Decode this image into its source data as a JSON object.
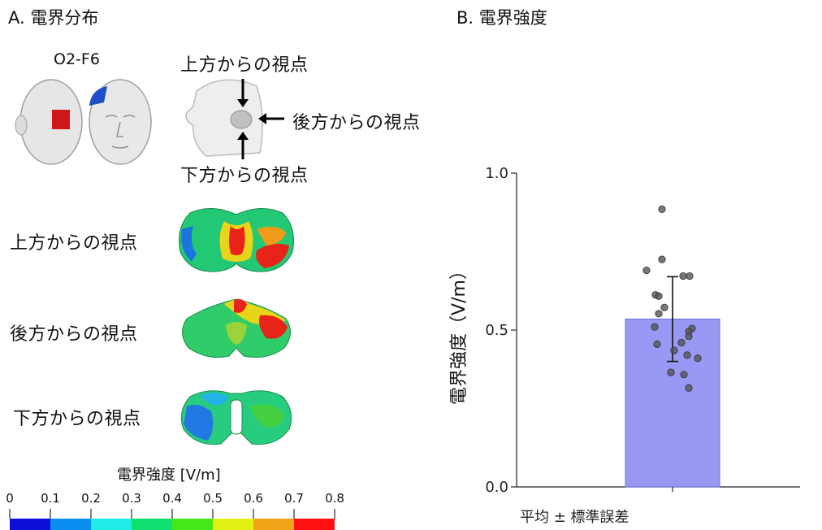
{
  "panelA": {
    "title": "A. 電界分布",
    "montage": "O2-F6",
    "views": {
      "top": "上方からの視点",
      "back": "後方からの視点",
      "bottom": "下方からの視点"
    },
    "colorbar": {
      "title": "電界強度 [V/m]",
      "ticks": [
        "0",
        "0.1",
        "0.2",
        "0.3",
        "0.4",
        "0.5",
        "0.6",
        "0.7",
        "0.8"
      ],
      "colors": [
        "#0a10d8",
        "#0c8ef0",
        "#22ece6",
        "#10e070",
        "#44e818",
        "#e4f014",
        "#f0a418",
        "#ff1010"
      ]
    }
  },
  "panelB": {
    "title": "B. 電界強度"
  },
  "chart_data": {
    "type": "bar",
    "title": "",
    "categories": [
      "平均 ± 標準誤差"
    ],
    "values": [
      0.535
    ],
    "error": [
      0.135
    ],
    "ylabel": "電界強度（V/m）",
    "xlabel": "",
    "ylim": [
      0.0,
      1.0
    ],
    "yticks": [
      "0.0",
      "0.5",
      "1.0"
    ],
    "bar_color": "#9999f5",
    "points": [
      0.885,
      0.725,
      0.69,
      0.672,
      0.672,
      0.612,
      0.608,
      0.572,
      0.552,
      0.51,
      0.505,
      0.495,
      0.48,
      0.46,
      0.455,
      0.435,
      0.42,
      0.41,
      0.365,
      0.358,
      0.315
    ]
  }
}
